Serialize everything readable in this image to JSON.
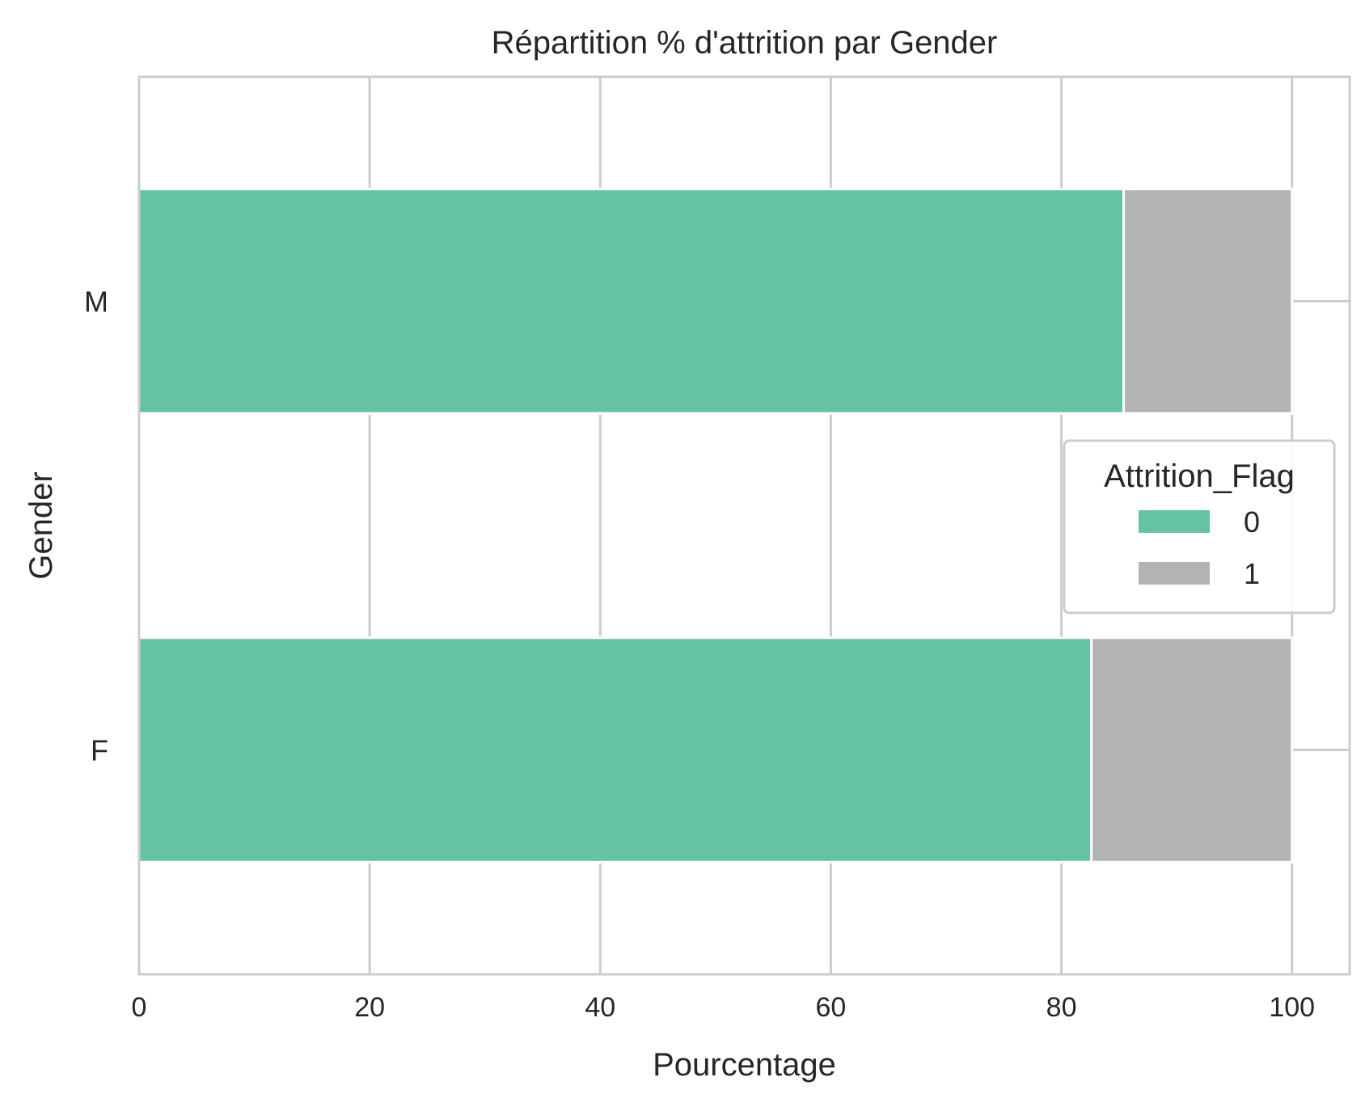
{
  "chart_data": {
    "type": "bar",
    "orientation": "horizontal",
    "stacked": true,
    "title": "Répartition % d'attrition par Gender",
    "xlabel": "Pourcentage",
    "ylabel": "Gender",
    "categories": [
      "M",
      "F"
    ],
    "xlim": [
      0,
      105
    ],
    "xticks": [
      0,
      20,
      40,
      60,
      80,
      100
    ],
    "xtick_labels": [
      "0",
      "20",
      "40",
      "60",
      "80",
      "100"
    ],
    "grid": true,
    "series": [
      {
        "name": "0",
        "values": [
          85.4,
          82.6
        ],
        "color": "#66c2a5"
      },
      {
        "name": "1",
        "values": [
          14.6,
          17.4
        ],
        "color": "#b3b3b3"
      }
    ],
    "legend": {
      "title": "Attrition_Flag",
      "position": "center-right",
      "entries": [
        "0",
        "1"
      ]
    }
  }
}
